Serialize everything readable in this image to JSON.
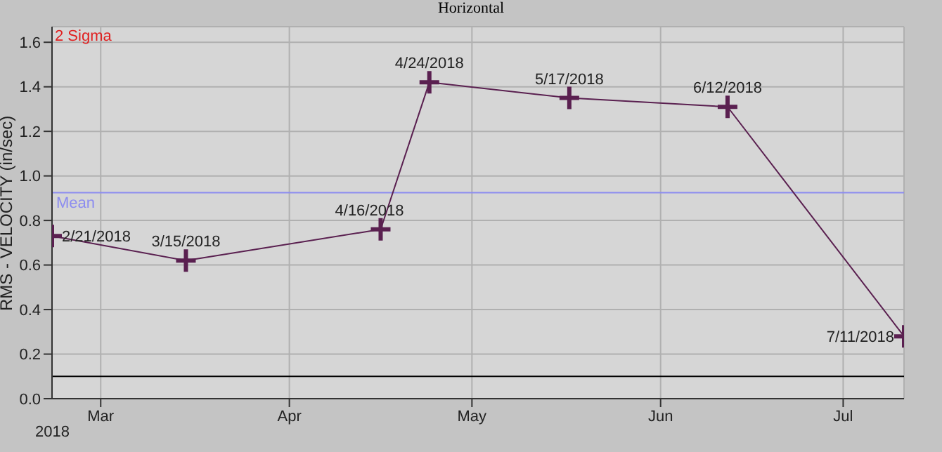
{
  "chart_data": {
    "type": "line",
    "title": "Horizontal",
    "ylabel": "RMS - VELOCITY (in/sec)",
    "x": [
      "2018-02-21",
      "2018-03-15",
      "2018-04-16",
      "2018-04-24",
      "2018-05-17",
      "2018-06-12",
      "2018-07-11"
    ],
    "series": [
      {
        "color": "#5a2050",
        "values": [
          0.73,
          0.62,
          0.76,
          1.42,
          1.35,
          1.31,
          0.28
        ],
        "value_labels": [
          "2/21/2018",
          "3/15/2018",
          "4/16/2018",
          "4/24/2018",
          "5/17/2018",
          "6/12/2018",
          "7/11/2018"
        ]
      }
    ],
    "xlim": [
      "2018-02-21",
      "2018-07-11"
    ],
    "xticks": [
      {
        "value": "2018-03-01",
        "label": "Mar"
      },
      {
        "value": "2018-04-01",
        "label": "Apr"
      },
      {
        "value": "2018-05-01",
        "label": "May"
      },
      {
        "value": "2018-06-01",
        "label": "Jun"
      },
      {
        "value": "2018-07-01",
        "label": "Jul"
      }
    ],
    "ylim": [
      0,
      1.67
    ],
    "yticks": [
      {
        "value": 0,
        "label": "0.0"
      },
      0.2,
      0.4,
      0.6,
      0.8,
      {
        "value": 1,
        "label": "1.0"
      },
      1.2,
      1.4,
      1.6
    ],
    "ref_lines": [
      {
        "axis": "y",
        "value": 0.925,
        "label": "Mean",
        "color": "#8c8cf0"
      },
      {
        "axis": "y",
        "value": 0.1,
        "label": null,
        "color": "#000000"
      }
    ],
    "annotations": [
      "2 Sigma",
      "2018"
    ],
    "grid": true,
    "legend": false,
    "marker": "cross",
    "line_style": "solid"
  }
}
